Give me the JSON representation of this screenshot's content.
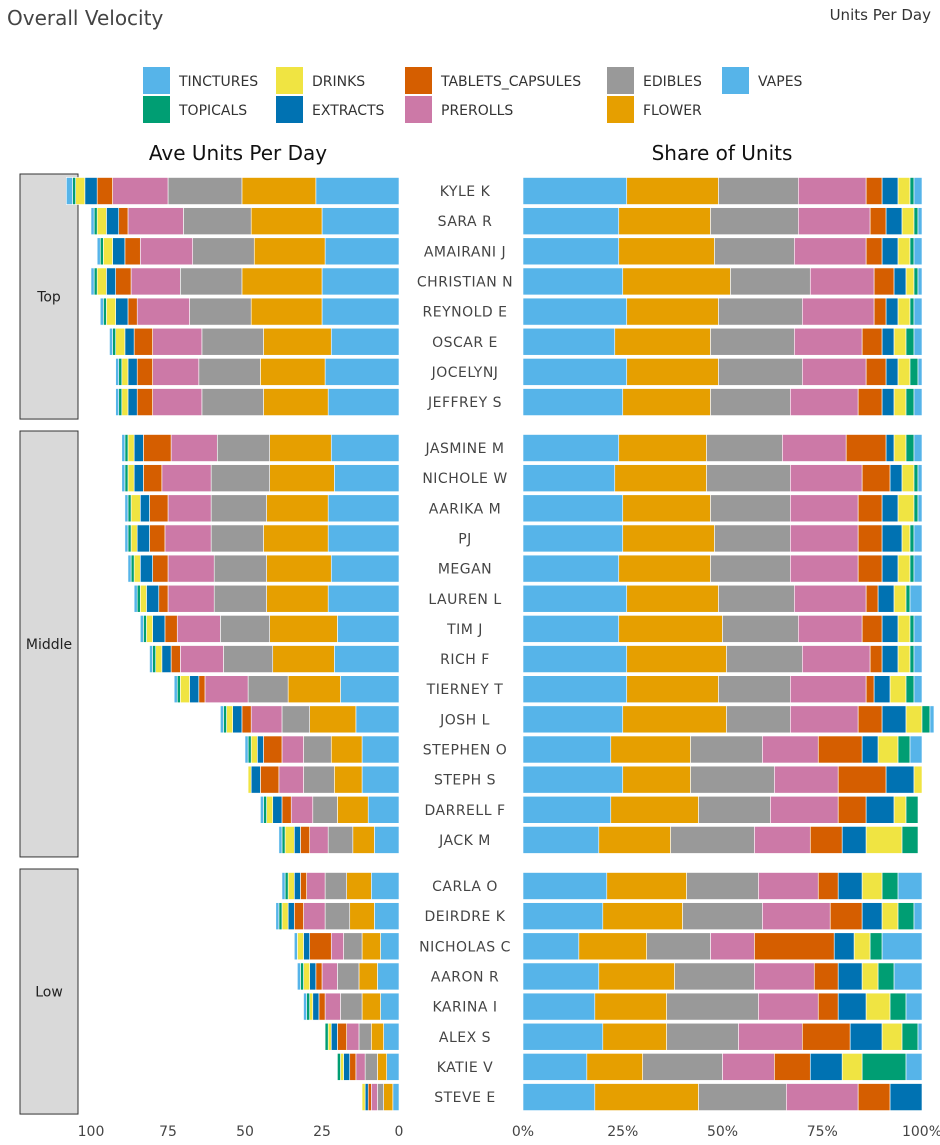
{
  "header": {
    "title": "Overall Velocity",
    "subtitle": "Units Per Day"
  },
  "colors": {
    "TINCTURES": "#56B4E9",
    "TOPICALS": "#009E73",
    "DRINKS": "#F0E442",
    "EXTRACTS": "#0072B2",
    "TABLETS_CAPSULES": "#D55E00",
    "PREROLLS": "#CC79A7",
    "EDIBLES": "#999999",
    "FLOWER": "#E69F00",
    "VAPES": "#56B4E9"
  },
  "chart_data": [
    {
      "type": "bar",
      "orientation": "horizontal-reversed",
      "title": "Ave Units Per Day",
      "xlim": [
        0,
        100
      ],
      "x_ticks": [
        "100",
        "75",
        "50",
        "25",
        "0"
      ],
      "stack_order": [
        "VAPES",
        "FLOWER",
        "EDIBLES",
        "PREROLLS",
        "TABLETS_CAPSULES",
        "EXTRACTS",
        "DRINKS",
        "TOPICALS",
        "TINCTURES"
      ],
      "groups": [
        "Top",
        "Middle",
        "Low"
      ],
      "categories": [
        "KYLE K",
        "SARA R",
        "AMAIRANI J",
        "CHRISTIAN N",
        "REYNOLD E",
        "OSCAR E",
        "JOCELYNJ",
        "JEFFREY S",
        "JASMINE M",
        "NICHOLE W",
        "AARIKA M",
        "PJ",
        "MEGAN",
        "LAUREN L",
        "TIM J",
        "RICH F",
        "TIERNEY T",
        "JOSH L",
        "STEPHEN O",
        "STEPH S",
        "DARRELL F",
        "JACK M",
        "CARLA O",
        "DEIRDRE K",
        "NICHOLAS C",
        "AARON R",
        "KARINA I",
        "ALEX S",
        "KATIE V",
        "STEVE E"
      ],
      "category_groups": [
        "Top",
        "Top",
        "Top",
        "Top",
        "Top",
        "Top",
        "Top",
        "Top",
        "Middle",
        "Middle",
        "Middle",
        "Middle",
        "Middle",
        "Middle",
        "Middle",
        "Middle",
        "Middle",
        "Middle",
        "Middle",
        "Middle",
        "Middle",
        "Middle",
        "Low",
        "Low",
        "Low",
        "Low",
        "Low",
        "Low",
        "Low",
        "Low"
      ],
      "series": [
        {
          "name": "VAPES",
          "values": [
            27,
            25,
            24,
            25,
            25,
            22,
            24,
            23,
            22,
            21,
            23,
            23,
            22,
            23,
            20,
            21,
            19,
            14,
            12,
            12,
            10,
            8,
            9,
            8,
            6,
            7,
            6,
            5,
            4,
            2
          ]
        },
        {
          "name": "FLOWER",
          "values": [
            24,
            23,
            23,
            26,
            23,
            22,
            21,
            21,
            20,
            21,
            20,
            21,
            21,
            20,
            22,
            20,
            17,
            15,
            10,
            9,
            10,
            7,
            8,
            8,
            6,
            6,
            6,
            4,
            3,
            3
          ]
        },
        {
          "name": "EDIBLES",
          "values": [
            24,
            22,
            20,
            20,
            20,
            20,
            20,
            20,
            17,
            19,
            18,
            17,
            17,
            17,
            16,
            16,
            13,
            9,
            9,
            10,
            8,
            8,
            7,
            8,
            6,
            7,
            7,
            4,
            4,
            2
          ]
        },
        {
          "name": "PREROLLS",
          "values": [
            18,
            18,
            17,
            16,
            17,
            16,
            15,
            16,
            15,
            16,
            14,
            15,
            15,
            15,
            14,
            14,
            14,
            10,
            7,
            8,
            7,
            6,
            6,
            7,
            4,
            5,
            5,
            4,
            3,
            2
          ]
        },
        {
          "name": "TABLETS_CAPSULES",
          "values": [
            5,
            3,
            5,
            5,
            3,
            6,
            5,
            5,
            9,
            6,
            6,
            5,
            5,
            3,
            4,
            3,
            2,
            3,
            6,
            6,
            3,
            3,
            2,
            3,
            7,
            2,
            2,
            3,
            2,
            1
          ]
        },
        {
          "name": "EXTRACTS",
          "values": [
            4,
            4,
            4,
            3,
            4,
            3,
            3,
            3,
            3,
            3,
            3,
            4,
            4,
            4,
            4,
            3,
            3,
            3,
            2,
            3,
            3,
            2,
            2,
            2,
            2,
            2,
            2,
            2,
            2,
            1
          ]
        },
        {
          "name": "DRINKS",
          "values": [
            3,
            3,
            3,
            3,
            3,
            3,
            2,
            2,
            2,
            2,
            3,
            2,
            2,
            2,
            2,
            2,
            3,
            2,
            2,
            1,
            2,
            3,
            2,
            2,
            2,
            2,
            1,
            1,
            1,
            1
          ]
        },
        {
          "name": "TOPICALS",
          "values": [
            1,
            1,
            1,
            1,
            1,
            1,
            1,
            1,
            1,
            1,
            1,
            1,
            1,
            1,
            1,
            1,
            1,
            1,
            1,
            0,
            1,
            1,
            1,
            1,
            0,
            1,
            1,
            1,
            1,
            0
          ]
        },
        {
          "name": "TINCTURES",
          "values": [
            2,
            1,
            1,
            1,
            1,
            1,
            1,
            1,
            1,
            1,
            1,
            1,
            1,
            1,
            1,
            1,
            1,
            1,
            1,
            0,
            1,
            1,
            1,
            1,
            1,
            1,
            1,
            0,
            0,
            0
          ]
        }
      ]
    },
    {
      "type": "bar",
      "orientation": "horizontal",
      "title": "Share of Units",
      "xlim": [
        0,
        1
      ],
      "x_ticks": [
        "0%",
        "25%",
        "50%",
        "75%",
        "100%"
      ],
      "stack_order": [
        "VAPES",
        "FLOWER",
        "EDIBLES",
        "PREROLLS",
        "TABLETS_CAPSULES",
        "EXTRACTS",
        "DRINKS",
        "TOPICALS",
        "TINCTURES"
      ],
      "categories": [
        "KYLE K",
        "SARA R",
        "AMAIRANI J",
        "CHRISTIAN N",
        "REYNOLD E",
        "OSCAR E",
        "JOCELYNJ",
        "JEFFREY S",
        "JASMINE M",
        "NICHOLE W",
        "AARIKA M",
        "PJ",
        "MEGAN",
        "LAUREN L",
        "TIM J",
        "RICH F",
        "TIERNEY T",
        "JOSH L",
        "STEPHEN O",
        "STEPH S",
        "DARRELL F",
        "JACK M",
        "CARLA O",
        "DEIRDRE K",
        "NICHOLAS C",
        "AARON R",
        "KARINA I",
        "ALEX S",
        "KATIE V",
        "STEVE E"
      ],
      "series": [
        {
          "name": "VAPES",
          "values": [
            0.26,
            0.24,
            0.24,
            0.25,
            0.26,
            0.23,
            0.26,
            0.25,
            0.24,
            0.23,
            0.25,
            0.25,
            0.24,
            0.26,
            0.24,
            0.26,
            0.26,
            0.25,
            0.22,
            0.25,
            0.22,
            0.19,
            0.21,
            0.2,
            0.14,
            0.19,
            0.18,
            0.2,
            0.16,
            0.18
          ]
        },
        {
          "name": "FLOWER",
          "values": [
            0.23,
            0.23,
            0.24,
            0.27,
            0.23,
            0.24,
            0.23,
            0.22,
            0.22,
            0.23,
            0.22,
            0.23,
            0.23,
            0.23,
            0.26,
            0.25,
            0.23,
            0.26,
            0.2,
            0.17,
            0.22,
            0.18,
            0.2,
            0.2,
            0.17,
            0.19,
            0.18,
            0.16,
            0.14,
            0.26
          ]
        },
        {
          "name": "EDIBLES",
          "values": [
            0.2,
            0.22,
            0.2,
            0.2,
            0.21,
            0.21,
            0.21,
            0.2,
            0.19,
            0.21,
            0.2,
            0.19,
            0.2,
            0.19,
            0.19,
            0.19,
            0.18,
            0.16,
            0.18,
            0.21,
            0.18,
            0.21,
            0.18,
            0.2,
            0.16,
            0.2,
            0.23,
            0.18,
            0.2,
            0.22
          ]
        },
        {
          "name": "PREROLLS",
          "values": [
            0.17,
            0.18,
            0.18,
            0.16,
            0.18,
            0.17,
            0.16,
            0.17,
            0.16,
            0.18,
            0.17,
            0.17,
            0.17,
            0.18,
            0.16,
            0.17,
            0.19,
            0.17,
            0.14,
            0.16,
            0.17,
            0.14,
            0.15,
            0.17,
            0.11,
            0.15,
            0.15,
            0.16,
            0.13,
            0.18
          ]
        },
        {
          "name": "TABLETS_CAPSULES",
          "values": [
            0.04,
            0.04,
            0.04,
            0.05,
            0.03,
            0.05,
            0.05,
            0.06,
            0.1,
            0.07,
            0.06,
            0.06,
            0.06,
            0.03,
            0.05,
            0.03,
            0.02,
            0.06,
            0.11,
            0.12,
            0.07,
            0.08,
            0.05,
            0.08,
            0.2,
            0.06,
            0.05,
            0.12,
            0.09,
            0.08
          ]
        },
        {
          "name": "EXTRACTS",
          "values": [
            0.04,
            0.04,
            0.04,
            0.03,
            0.03,
            0.03,
            0.03,
            0.03,
            0.02,
            0.03,
            0.04,
            0.05,
            0.04,
            0.04,
            0.04,
            0.04,
            0.04,
            0.06,
            0.04,
            0.07,
            0.07,
            0.06,
            0.06,
            0.05,
            0.05,
            0.06,
            0.07,
            0.08,
            0.08,
            0.08
          ]
        },
        {
          "name": "DRINKS",
          "values": [
            0.03,
            0.03,
            0.03,
            0.02,
            0.03,
            0.03,
            0.03,
            0.03,
            0.03,
            0.03,
            0.04,
            0.02,
            0.03,
            0.03,
            0.03,
            0.03,
            0.04,
            0.04,
            0.05,
            0.02,
            0.03,
            0.09,
            0.05,
            0.04,
            0.04,
            0.04,
            0.06,
            0.05,
            0.05,
            0
          ]
        },
        {
          "name": "TOPICALS",
          "values": [
            0.01,
            0.01,
            0.01,
            0.01,
            0.01,
            0.02,
            0.02,
            0.02,
            0.02,
            0.01,
            0.01,
            0.01,
            0.01,
            0.01,
            0.01,
            0.01,
            0.02,
            0.02,
            0.03,
            0,
            0.03,
            0.04,
            0.04,
            0.04,
            0.03,
            0.04,
            0.04,
            0.04,
            0.11,
            0
          ]
        },
        {
          "name": "TINCTURES",
          "values": [
            0.02,
            0.01,
            0.02,
            0.01,
            0.02,
            0.02,
            0.01,
            0.02,
            0.02,
            0.01,
            0.01,
            0.02,
            0.02,
            0.03,
            0.02,
            0.02,
            0.02,
            0.01,
            0.03,
            0,
            0,
            0,
            0.06,
            0.02,
            0.1,
            0.07,
            0.04,
            0.01,
            0.04,
            0
          ]
        }
      ]
    }
  ],
  "legend": [
    {
      "name": "TINCTURES",
      "color": "#56B4E9"
    },
    {
      "name": "TOPICALS",
      "color": "#009E73"
    },
    {
      "name": "DRINKS",
      "color": "#F0E442"
    },
    {
      "name": "EXTRACTS",
      "color": "#0072B2"
    },
    {
      "name": "TABLETS_CAPSULES",
      "color": "#D55E00"
    },
    {
      "name": "PREROLLS",
      "color": "#CC79A7"
    },
    {
      "name": "EDIBLES",
      "color": "#999999"
    },
    {
      "name": "FLOWER",
      "color": "#E69F00"
    },
    {
      "name": "VAPES",
      "color": "#56B4E9"
    }
  ]
}
